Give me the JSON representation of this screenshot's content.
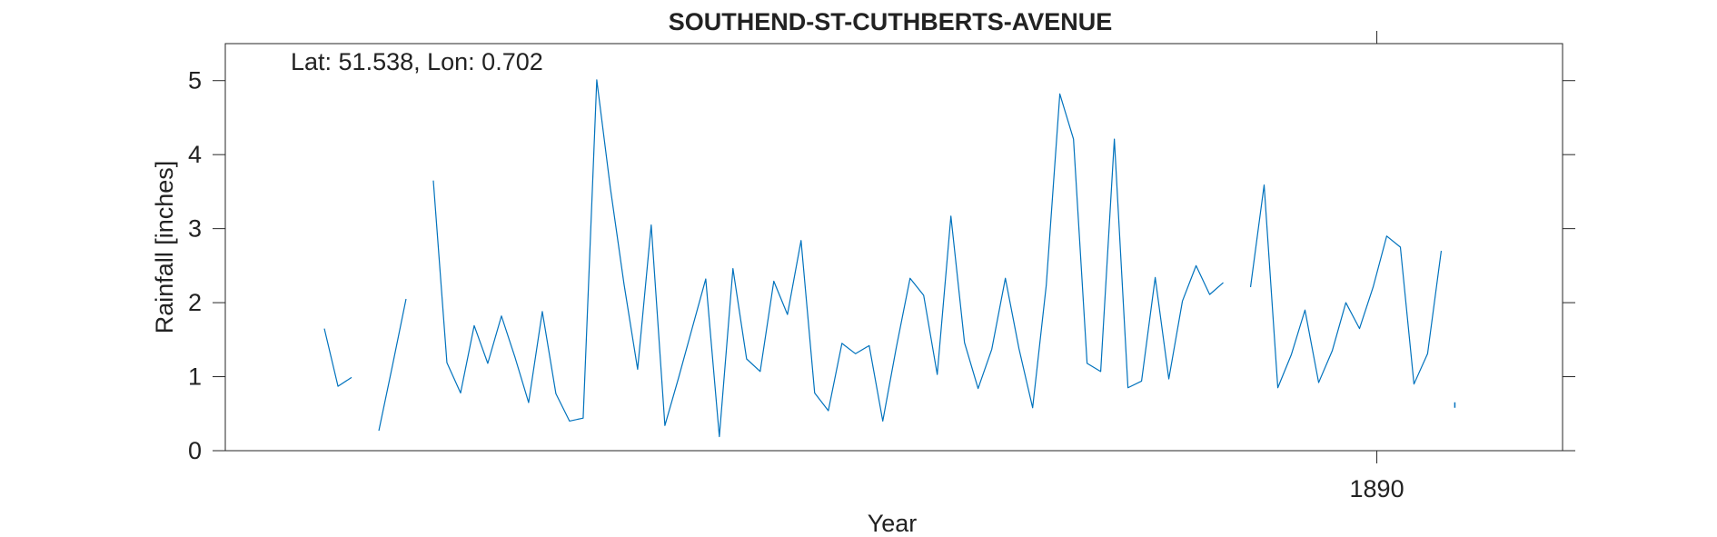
{
  "chart_data": {
    "type": "line",
    "title": "SOUTHEND-ST-CUTHBERTS-AVENUE",
    "annotation": "Lat: 51.538, Lon: 0.702",
    "xlabel": "Year",
    "ylabel": "Rainfall [inches]",
    "xlim": [
      1888.45,
      1890.25
    ],
    "ylim": [
      0,
      5.5
    ],
    "xticks": [
      1890
    ],
    "xtick_labels": [
      "1890"
    ],
    "yticks": [
      0,
      1,
      2,
      3,
      4,
      5
    ],
    "ytick_labels": [
      "0",
      "1",
      "2",
      "3",
      "4",
      "5"
    ],
    "grid": false,
    "legend": "none",
    "color": "#0072bd",
    "series": [
      {
        "x": [
          1888.5833,
          1888.6017,
          1888.62,
          1888.6383,
          1888.6567,
          1888.675,
          1888.6933,
          1888.7117,
          1888.73,
          1888.7483,
          1888.7667,
          1888.785,
          1888.8033,
          1888.8217,
          1888.84,
          1888.8583,
          1888.8767,
          1888.895,
          1888.9133,
          1888.9317,
          1888.95,
          1888.9683,
          1888.9867,
          1889.005,
          1889.0233,
          1889.0417,
          1889.06,
          1889.0783,
          1889.0967,
          1889.115,
          1889.1333,
          1889.1517,
          1889.17,
          1889.1883,
          1889.2067,
          1889.225,
          1889.2433,
          1889.2617,
          1889.28,
          1889.2983,
          1889.3167,
          1889.335,
          1889.3533,
          1889.3717,
          1889.39,
          1889.4083,
          1889.4267,
          1889.445,
          1889.4633,
          1889.4817,
          1889.5,
          1889.5183,
          1889.5367,
          1889.555,
          1889.5733,
          1889.5917,
          1889.61,
          1889.6283,
          1889.6467,
          1889.665,
          1889.6833,
          1889.7017,
          1889.72,
          1889.7383,
          1889.7567,
          1889.775,
          1889.7933,
          1889.8117,
          1889.83,
          1889.8483,
          1889.8667,
          1889.885,
          1889.9033,
          1889.9217,
          1889.94,
          1889.9583,
          1889.9767,
          1889.995,
          1890.0133,
          1890.0317,
          1890.05,
          1890.0683,
          1890.0867
        ],
        "values": [
          1.65,
          0.87,
          0.99,
          null,
          0.27,
          1.15,
          2.05,
          null,
          3.65,
          1.19,
          0.78,
          1.69,
          1.18,
          1.82,
          1.26,
          0.65,
          1.88,
          0.77,
          0.4,
          0.44,
          5.01,
          3.55,
          2.25,
          1.1,
          3.05,
          0.34,
          0.98,
          1.65,
          2.32,
          0.19,
          2.46,
          1.24,
          1.07,
          2.29,
          1.84,
          2.84,
          0.78,
          0.54,
          1.45,
          1.31,
          1.42,
          0.4,
          1.4,
          2.33,
          2.1,
          1.03,
          3.17,
          1.46,
          0.84,
          1.37,
          2.33,
          1.38,
          0.58,
          2.23,
          4.82,
          4.21,
          1.18,
          1.07,
          4.21,
          0.85,
          0.94,
          2.34,
          0.97,
          2.02,
          2.5,
          2.11,
          2.27,
          null,
          2.21,
          3.59,
          0.85,
          1.3,
          1.9,
          0.92,
          1.35,
          2.0,
          1.65,
          2.21,
          2.9,
          2.75,
          0.9,
          1.31,
          2.7
        ]
      }
    ],
    "trailing_point": {
      "x": 1890.105,
      "value": 0.58
    }
  }
}
